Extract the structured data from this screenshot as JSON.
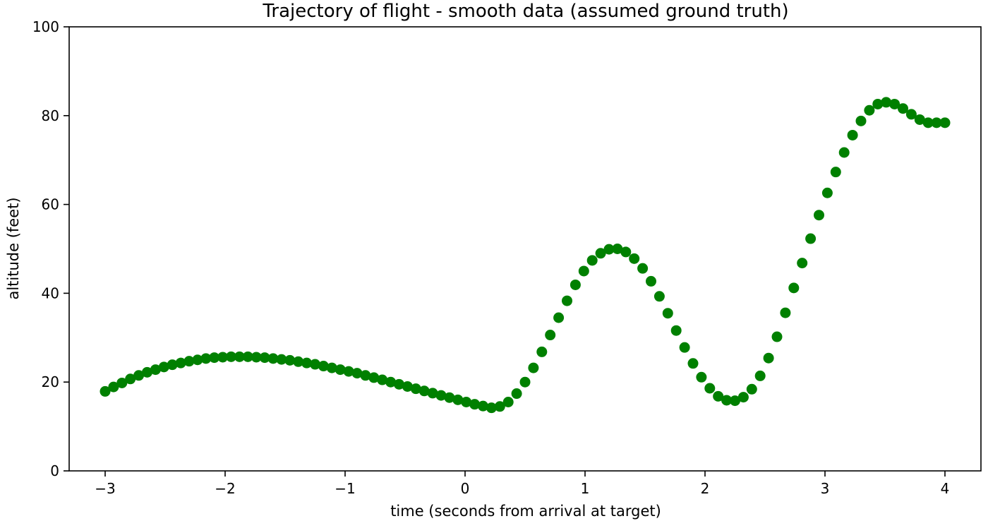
{
  "chart_data": {
    "type": "scatter",
    "title": "Trajectory of flight - smooth data (assumed ground truth)",
    "xlabel": "time (seconds from arrival at target)",
    "ylabel": "altitude (feet)",
    "xlim": [
      -3.3,
      4.3
    ],
    "ylim": [
      0,
      100
    ],
    "xticks": [
      -3,
      -2,
      -1,
      0,
      1,
      2,
      3,
      4
    ],
    "xtick_labels": [
      "−3",
      "−2",
      "−1",
      "0",
      "1",
      "2",
      "3",
      "4"
    ],
    "yticks": [
      0,
      20,
      40,
      60,
      80,
      100
    ],
    "ytick_labels": [
      "0",
      "20",
      "40",
      "60",
      "80",
      "100"
    ],
    "grid": false,
    "marker_color": "#008000",
    "series": [
      {
        "x": [
          -3.0,
          -2.93,
          -2.86,
          -2.79,
          -2.72,
          -2.65,
          -2.58,
          -2.51,
          -2.44,
          -2.37,
          -2.3,
          -2.23,
          -2.16,
          -2.09,
          -2.02,
          -1.95,
          -1.88,
          -1.81,
          -1.74,
          -1.67,
          -1.6,
          -1.53,
          -1.46,
          -1.39,
          -1.32,
          -1.25,
          -1.18,
          -1.11,
          -1.04,
          -0.97,
          -0.9,
          -0.83,
          -0.76,
          -0.69,
          -0.62,
          -0.55,
          -0.48,
          -0.41,
          -0.34,
          -0.27,
          -0.2,
          -0.13,
          -0.06,
          0.01,
          0.08,
          0.15,
          0.22,
          0.29,
          0.36,
          0.43,
          0.5,
          0.57,
          0.64,
          0.71,
          0.78,
          0.85,
          0.92,
          0.99,
          1.06,
          1.13,
          1.2,
          1.27,
          1.34,
          1.41,
          1.48,
          1.55,
          1.62,
          1.69,
          1.76,
          1.83,
          1.9,
          1.97,
          2.04,
          2.11,
          2.18,
          2.25,
          2.32,
          2.39,
          2.46,
          2.53,
          2.6,
          2.67,
          2.74,
          2.81,
          2.88,
          2.95,
          3.02,
          3.09,
          3.16,
          3.23,
          3.3,
          3.37,
          3.44,
          3.51,
          3.58,
          3.65,
          3.72,
          3.79,
          3.86,
          3.93,
          4.0
        ],
        "y": [
          17.9,
          18.9,
          19.8,
          20.7,
          21.5,
          22.2,
          22.8,
          23.4,
          23.9,
          24.3,
          24.7,
          25.0,
          25.3,
          25.5,
          25.6,
          25.7,
          25.7,
          25.7,
          25.6,
          25.5,
          25.3,
          25.1,
          24.9,
          24.6,
          24.3,
          24.0,
          23.6,
          23.2,
          22.8,
          22.4,
          22.0,
          21.5,
          21.0,
          20.5,
          20.0,
          19.5,
          19.0,
          18.5,
          18.0,
          17.5,
          17.0,
          16.5,
          16.0,
          15.5,
          15.0,
          14.6,
          14.2,
          14.5,
          15.5,
          17.4,
          20.0,
          23.2,
          26.8,
          30.6,
          34.5,
          38.3,
          41.9,
          45.0,
          47.4,
          49.0,
          49.9,
          50.0,
          49.3,
          47.8,
          45.6,
          42.7,
          39.3,
          35.5,
          31.6,
          27.8,
          24.2,
          21.1,
          18.6,
          16.8,
          15.9,
          15.8,
          16.6,
          18.4,
          21.4,
          25.4,
          30.2,
          35.6,
          41.2,
          46.8,
          52.3,
          57.6,
          62.6,
          67.3,
          71.7,
          75.6,
          78.8,
          81.2,
          82.6,
          83.0,
          82.6,
          81.6,
          80.3,
          79.1,
          78.4,
          78.4,
          78.4
        ]
      }
    ]
  }
}
